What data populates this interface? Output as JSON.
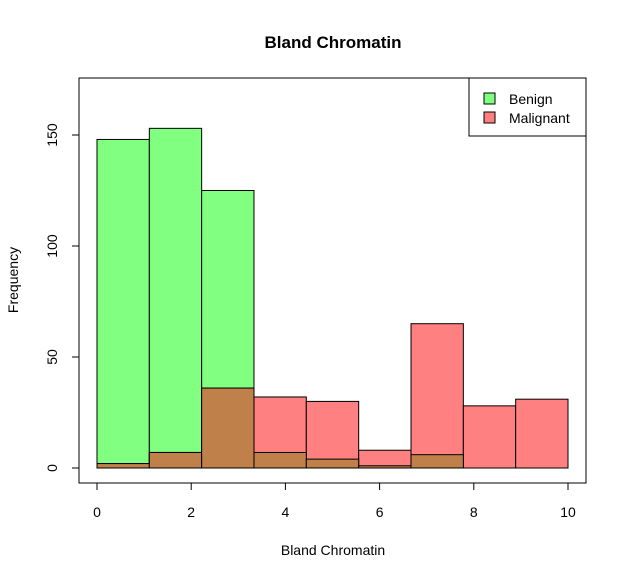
{
  "chart_data": {
    "type": "bar",
    "title": "Bland Chromatin",
    "xlabel": "Bland Chromatin",
    "ylabel": "Frequency",
    "xlim": [
      0,
      10
    ],
    "ylim": [
      0,
      170
    ],
    "x_ticks": [
      0,
      2,
      4,
      6,
      8,
      10
    ],
    "y_ticks": [
      0,
      50,
      100,
      150
    ],
    "bin_edges": [
      0,
      1.111,
      2.222,
      3.333,
      4.444,
      5.556,
      6.667,
      7.778,
      8.889,
      10
    ],
    "series": [
      {
        "name": "Benign",
        "color": "#80FF80",
        "values": [
          148,
          153,
          125,
          7,
          4,
          1,
          6,
          0,
          0
        ]
      },
      {
        "name": "Malignant",
        "color": "#FF8080",
        "values": [
          2,
          7,
          36,
          32,
          30,
          8,
          65,
          28,
          31
        ]
      }
    ],
    "overlap_color": "#C0804A",
    "legend_position": "top-right",
    "grid": false
  }
}
